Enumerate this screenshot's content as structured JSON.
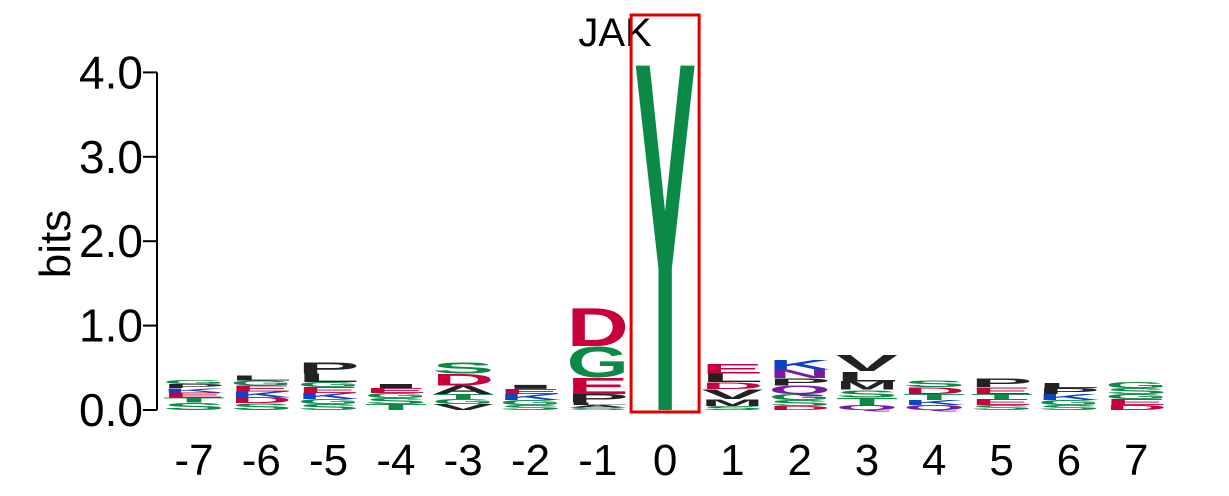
{
  "chart_data": {
    "type": "sequence-logo",
    "title": "JAK",
    "ylabel": "bits",
    "ylim": [
      0,
      4.3
    ],
    "y_ticks": [
      "0.0",
      "1.0",
      "2.0",
      "3.0",
      "4.0"
    ],
    "y_tick_values": [
      0,
      1,
      2,
      3,
      4
    ],
    "positions": [
      "-7",
      "-6",
      "-5",
      "-4",
      "-3",
      "-2",
      "-1",
      "0",
      "1",
      "2",
      "3",
      "4",
      "5",
      "6",
      "7"
    ],
    "highlight_position": "0",
    "colors": {
      "acidic": "#c8003c",
      "polar": "#0a8a46",
      "basic": "#0a44c4",
      "hydrophobic": "#222222",
      "amide": "#7a1aa0",
      "highlight_box": "#e00000"
    },
    "columns": [
      {
        "pos": "-7",
        "letters": [
          {
            "aa": "S",
            "bits": 0.09
          },
          {
            "aa": "T",
            "bits": 0.06
          },
          {
            "aa": "E",
            "bits": 0.06
          },
          {
            "aa": "K",
            "bits": 0.05
          },
          {
            "aa": "P",
            "bits": 0.05
          },
          {
            "aa": "G",
            "bits": 0.05
          }
        ]
      },
      {
        "pos": "-6",
        "letters": [
          {
            "aa": "S",
            "bits": 0.08
          },
          {
            "aa": "D",
            "bits": 0.07
          },
          {
            "aa": "K",
            "bits": 0.07
          },
          {
            "aa": "E",
            "bits": 0.07
          },
          {
            "aa": "G",
            "bits": 0.06
          },
          {
            "aa": "L",
            "bits": 0.06
          }
        ]
      },
      {
        "pos": "-5",
        "letters": [
          {
            "aa": "S",
            "bits": 0.07
          },
          {
            "aa": "G",
            "bits": 0.06
          },
          {
            "aa": "K",
            "bits": 0.07
          },
          {
            "aa": "E",
            "bits": 0.07
          },
          {
            "aa": "G",
            "bits": 0.06
          },
          {
            "aa": "L",
            "bits": 0.1
          },
          {
            "aa": "P",
            "bits": 0.13
          }
        ]
      },
      {
        "pos": "-4",
        "letters": [
          {
            "aa": "T",
            "bits": 0.07
          },
          {
            "aa": "S",
            "bits": 0.07
          },
          {
            "aa": "G",
            "bits": 0.06
          },
          {
            "aa": "E",
            "bits": 0.06
          },
          {
            "aa": "I",
            "bits": 0.05
          }
        ]
      },
      {
        "pos": "-3",
        "letters": [
          {
            "aa": "V",
            "bits": 0.07
          },
          {
            "aa": "G",
            "bits": 0.06
          },
          {
            "aa": "T",
            "bits": 0.06
          },
          {
            "aa": "A",
            "bits": 0.1
          },
          {
            "aa": "D",
            "bits": 0.14
          },
          {
            "aa": "S",
            "bits": 0.13
          }
        ]
      },
      {
        "pos": "-2",
        "letters": [
          {
            "aa": "S",
            "bits": 0.06
          },
          {
            "aa": "G",
            "bits": 0.06
          },
          {
            "aa": "K",
            "bits": 0.07
          },
          {
            "aa": "E",
            "bits": 0.06
          },
          {
            "aa": "I",
            "bits": 0.05
          }
        ]
      },
      {
        "pos": "-1",
        "letters": [
          {
            "aa": "S",
            "bits": 0.03
          },
          {
            "aa": "A",
            "bits": 0.03
          },
          {
            "aa": "L",
            "bits": 0.03
          },
          {
            "aa": "P",
            "bits": 0.1
          },
          {
            "aa": "E",
            "bits": 0.2
          },
          {
            "aa": "G",
            "bits": 0.37
          },
          {
            "aa": "D",
            "bits": 0.47
          }
        ]
      },
      {
        "pos": "0",
        "letters": [
          {
            "aa": "Y",
            "bits": 4.27
          }
        ]
      },
      {
        "pos": "1",
        "letters": [
          {
            "aa": "S",
            "bits": 0.05
          },
          {
            "aa": "M",
            "bits": 0.08
          },
          {
            "aa": "V",
            "bits": 0.12
          },
          {
            "aa": "D",
            "bits": 0.08
          },
          {
            "aa": "L",
            "bits": 0.1
          },
          {
            "aa": "E",
            "bits": 0.12
          }
        ]
      },
      {
        "pos": "2",
        "letters": [
          {
            "aa": "D",
            "bits": 0.05
          },
          {
            "aa": "S",
            "bits": 0.07
          },
          {
            "aa": "G",
            "bits": 0.07
          },
          {
            "aa": "Q",
            "bits": 0.1
          },
          {
            "aa": "P",
            "bits": 0.09
          },
          {
            "aa": "N",
            "bits": 0.1
          },
          {
            "aa": "K",
            "bits": 0.12
          }
        ]
      },
      {
        "pos": "3",
        "letters": [
          {
            "aa": "Q",
            "bits": 0.06
          },
          {
            "aa": "T",
            "bits": 0.09
          },
          {
            "aa": "S",
            "bits": 0.09
          },
          {
            "aa": "M",
            "bits": 0.1
          },
          {
            "aa": "L",
            "bits": 0.12
          },
          {
            "aa": "V",
            "bits": 0.2
          }
        ]
      },
      {
        "pos": "4",
        "letters": [
          {
            "aa": "Q",
            "bits": 0.06
          },
          {
            "aa": "K",
            "bits": 0.06
          },
          {
            "aa": "T",
            "bits": 0.07
          },
          {
            "aa": "D",
            "bits": 0.08
          },
          {
            "aa": "S",
            "bits": 0.08
          }
        ]
      },
      {
        "pos": "5",
        "letters": [
          {
            "aa": "S",
            "bits": 0.06
          },
          {
            "aa": "E",
            "bits": 0.07
          },
          {
            "aa": "T",
            "bits": 0.06
          },
          {
            "aa": "E",
            "bits": 0.08
          },
          {
            "aa": "P",
            "bits": 0.1
          }
        ]
      },
      {
        "pos": "6",
        "letters": [
          {
            "aa": "S",
            "bits": 0.06
          },
          {
            "aa": "G",
            "bits": 0.06
          },
          {
            "aa": "K",
            "bits": 0.07
          },
          {
            "aa": "P",
            "bits": 0.07
          },
          {
            "aa": "L",
            "bits": 0.06
          }
        ]
      },
      {
        "pos": "7",
        "letters": [
          {
            "aa": "D",
            "bits": 0.06
          },
          {
            "aa": "E",
            "bits": 0.07
          },
          {
            "aa": "G",
            "bits": 0.06
          },
          {
            "aa": "S",
            "bits": 0.07
          },
          {
            "aa": "G",
            "bits": 0.07
          }
        ]
      }
    ],
    "aa_color_group": {
      "D": "acidic",
      "E": "acidic",
      "S": "polar",
      "T": "polar",
      "G": "polar",
      "Y": "polar",
      "C": "polar",
      "K": "basic",
      "R": "basic",
      "H": "basic",
      "N": "amide",
      "Q": "amide",
      "A": "hydrophobic",
      "V": "hydrophobic",
      "L": "hydrophobic",
      "I": "hydrophobic",
      "P": "hydrophobic",
      "M": "hydrophobic",
      "F": "hydrophobic",
      "W": "hydrophobic"
    }
  }
}
